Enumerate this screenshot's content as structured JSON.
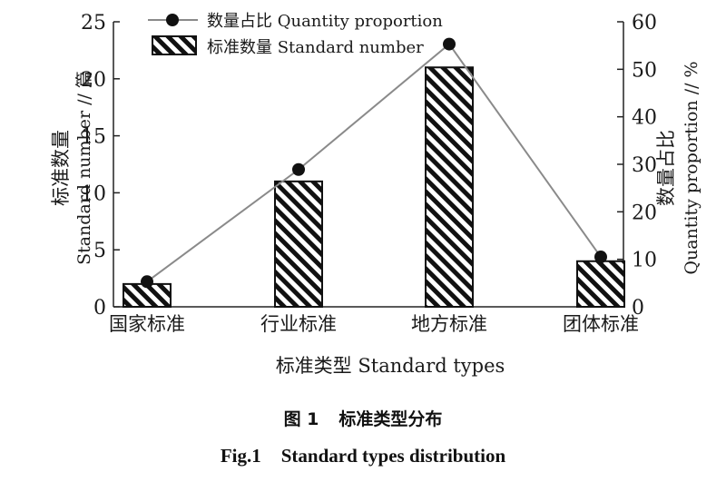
{
  "chart_data": {
    "type": "bar",
    "categories": [
      "国家标准",
      "行业标准",
      "地方标准",
      "团体标准"
    ],
    "series": [
      {
        "name": "标准数量 Standard number",
        "type": "bar",
        "axis": "left",
        "values": [
          2,
          11,
          21,
          4
        ]
      },
      {
        "name": "数量占比 Quantity proportion",
        "type": "line",
        "axis": "right",
        "values": [
          5.3,
          28.9,
          55.3,
          10.5
        ]
      }
    ],
    "xlabel": "标准类型 Standard types",
    "ylabel_left": {
      "cn": "标准数量",
      "en": "Standard number // 篇"
    },
    "ylabel_right": {
      "cn": "数量占比",
      "en": "Quantity proportion // %"
    },
    "ylim_left": [
      0,
      25
    ],
    "yticks_left": [
      "0",
      "5",
      "10",
      "15",
      "20",
      "25"
    ],
    "ylim_right": [
      0,
      60
    ],
    "yticks_right": [
      "0",
      "10",
      "20",
      "30",
      "40",
      "50",
      "60"
    ],
    "grid": false,
    "legend_position": "top-left",
    "colors": {
      "bar_stripe": "#111111",
      "line": "#8a8a8a",
      "marker": "#111111",
      "axis": "#222222"
    }
  },
  "caption": {
    "cn_label": "图 1",
    "cn_text": "标准类型分布",
    "en_label": "Fig.1",
    "en_text": "Standard types distribution"
  }
}
